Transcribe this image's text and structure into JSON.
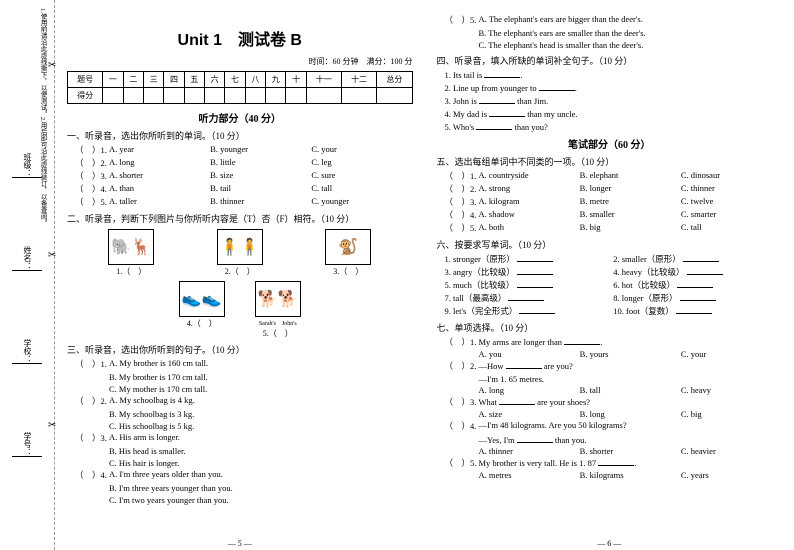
{
  "sidebar": {
    "labels": [
      "学校：",
      "学号：",
      "班级：",
      "姓名："
    ],
    "note": "1.使用前请沿此虚线撕下，以便测试。2.用后即可沿此虚线装订，以备查阅。"
  },
  "title": "Unit 1　测试卷 B",
  "subinfo": "时间：60 分钟　满分：100 分",
  "scoreHeaders": [
    "题号",
    "一",
    "二",
    "三",
    "四",
    "五",
    "六",
    "七",
    "八",
    "九",
    "十",
    "十一",
    "十二",
    "总分"
  ],
  "scoreRow2": "得分",
  "listenHead": "听力部分（40 分）",
  "writtenHead": "笔试部分（60 分）",
  "left": {
    "q1": {
      "head": "一、听录音，选出你所听到的单词。（10 分）",
      "items": [
        {
          "n": "1",
          "a": "A. year",
          "b": "B. younger",
          "c": "C. your"
        },
        {
          "n": "2",
          "a": "A. long",
          "b": "B. little",
          "c": "C. leg"
        },
        {
          "n": "3",
          "a": "A. shorter",
          "b": "B. size",
          "c": "C. sure"
        },
        {
          "n": "4",
          "a": "A. than",
          "b": "B. tail",
          "c": "C. tall"
        },
        {
          "n": "5",
          "a": "A. taller",
          "b": "B. thinner",
          "c": "C. younger"
        }
      ]
    },
    "q2": {
      "head": "二、听录音，判断下列图片与你所听内容是（T）否（F）相符。（10 分）",
      "imgs1": [
        "🐘",
        "👥",
        "🧍",
        "🐿️"
      ],
      "caps1": [
        "1",
        "2",
        "3"
      ],
      "imgs2": [
        "👟",
        "🐕"
      ],
      "caps2": [
        "4",
        "5"
      ],
      "small": "Sarah's　John's"
    },
    "q3": {
      "head": "三、听录音，选出你所听到的句子。（10 分）",
      "items": [
        {
          "n": "1",
          "a": "A. My brother is 160 cm tall.",
          "b": "B. My brother is 170 cm tall.",
          "c": "C. My mother is 170 cm tall."
        },
        {
          "n": "2",
          "a": "A. My schoolbag is 4 kg.",
          "b": "B. My schoolbag is 3 kg.",
          "c": "C. His schoolbag is 5 kg."
        },
        {
          "n": "3",
          "a": "A. His arm is longer.",
          "b": "B. His head is smaller.",
          "c": "C. His hair is longer."
        },
        {
          "n": "4",
          "a": "A. I'm three years older than you.",
          "b": "B. I'm three years younger than you.",
          "c": "C. I'm two years younger than you."
        }
      ]
    }
  },
  "right": {
    "carry5": [
      "A. The elephant's ears are bigger than the deer's.",
      "B. The elephant's ears are smaller than the deer's.",
      "C. The elephant's head is smaller than the deer's."
    ],
    "q4": {
      "head": "四、听录音，填入所缺的单词补全句子。（10 分）",
      "items": [
        "1. Its tail is ______.",
        "2. Line up from younger to ______.",
        "3. John is ______ than Jim.",
        "4. My dad is ______ than my uncle.",
        "5. Who's ______ than you?"
      ]
    },
    "q5": {
      "head": "五、选出每组单词中不同类的一项。（10 分）",
      "items": [
        {
          "n": "1",
          "a": "A. countryside",
          "b": "B. elephant",
          "c": "C. dinosaur"
        },
        {
          "n": "2",
          "a": "A. strong",
          "b": "B. longer",
          "c": "C. thinner"
        },
        {
          "n": "3",
          "a": "A. kilogram",
          "b": "B. metre",
          "c": "C. twelve"
        },
        {
          "n": "4",
          "a": "A. shadow",
          "b": "B. smaller",
          "c": "C. smarter"
        },
        {
          "n": "5",
          "a": "A. both",
          "b": "B. big",
          "c": "C. tall"
        }
      ]
    },
    "q6": {
      "head": "六、按要求写单词。（10 分）",
      "pairs": [
        [
          "1. stronger（原形） ______",
          "2. smaller（原形） ______"
        ],
        [
          "3. angry（比较级） ______",
          "4. heavy（比较级） ______"
        ],
        [
          "5. much（比较级） ______",
          "6. hot（比较级） ______"
        ],
        [
          "7. tall（最高级） ______",
          "8. longer（原形） ______"
        ],
        [
          "9. let's（完全形式） ______",
          "10. foot（复数） ______"
        ]
      ]
    },
    "q7": {
      "head": "七、单项选择。（10 分）",
      "items": [
        {
          "n": "1",
          "q": "My arms are longer than ______.",
          "a": "A. you",
          "b": "B. yours",
          "c": "C. your"
        },
        {
          "n": "2",
          "q": "—How ______ are you?",
          "q2": "—I'm 1. 65 metres.",
          "a": "A. long",
          "b": "B. tall",
          "c": "C. heavy"
        },
        {
          "n": "3",
          "q": "What ______ are your shoes?",
          "a": "A. size",
          "b": "B. long",
          "c": "C. big"
        },
        {
          "n": "4",
          "q": "—I'm 48 kilograms. Are you 50 kilograms?",
          "q2": "—Yes, I'm ______ than you.",
          "a": "A. thinner",
          "b": "B. shorter",
          "c": "C. heavier"
        },
        {
          "n": "5",
          "q": "My brother is very tall. He is 1. 87 ______.",
          "a": "A. metres",
          "b": "B. kilograms",
          "c": "C. years"
        }
      ]
    }
  },
  "footerL": "— 5 —",
  "footerR": "— 6 —"
}
